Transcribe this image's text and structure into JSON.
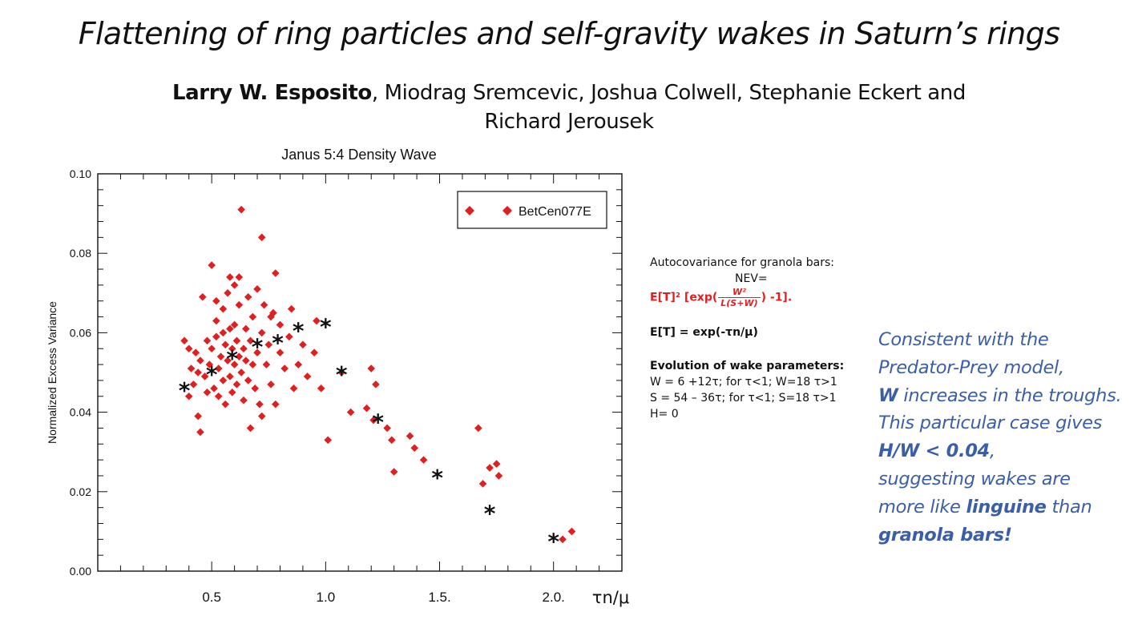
{
  "slide": {
    "title": "Flattening of ring particles and self-gravity wakes in Saturn’s rings",
    "lead_author": "Larry W. Esposito",
    "coauthors_line1": ", Miodrag Sremcevic, Joshua Colwell, Stephanie Eckert and",
    "coauthors_line2": "Richard Jerousek"
  },
  "formulas": {
    "heading": "Autocovariance for granola bars:",
    "nev": "NEV=",
    "nev_lhs": "E[T]² [exp(",
    "nev_num": "W²",
    "nev_den": "L(S+W)",
    "nev_rhs": ") -1].",
    "et": "E[T] = exp(-τn/μ)",
    "evolution_heading": "Evolution of wake parameters:",
    "w_rule": "W = 6 +12τ; for τ<1;  W=18  τ>1",
    "s_rule": "S = 54 – 36τ; for τ<1;  S=18  τ>1",
    "h_rule": "H= 0"
  },
  "conclusion": {
    "line1": "Consistent with the",
    "line2": "Predator-Prey model,",
    "line3_bold": "W",
    "line3_rest": " increases in the troughs.",
    "line4": "This particular case gives",
    "line5_bold": "H/W < 0.04",
    "line5_rest": ",",
    "line6": "suggesting wakes are",
    "line7_pre": "more like ",
    "line7_bold": "linguine",
    "line7_post": " than",
    "line8_bold": "granola bars!"
  },
  "colors": {
    "series_red": "#e02020",
    "model_marker": "#111111",
    "conclusion_blue": "#3a5fa8"
  },
  "chart_data": {
    "type": "scatter",
    "title": "Janus 5:4 Density Wave",
    "xlabel": "τn/μ",
    "ylabel": "Normalized Excess Variance",
    "xlim": [
      0.0,
      2.3
    ],
    "ylim": [
      0.0,
      0.1
    ],
    "x_ticks": [
      "0.5",
      "1.0",
      "1.5.",
      "2.0."
    ],
    "y_ticks": [
      "0.00",
      "0.02",
      "0.04",
      "0.06",
      "0.08",
      "0.10"
    ],
    "legend": {
      "position": "top-right",
      "entries": [
        "BetCen077E"
      ]
    },
    "series": [
      {
        "name": "BetCen077E",
        "marker": "diamond",
        "points": [
          [
            0.38,
            0.058
          ],
          [
            0.4,
            0.056
          ],
          [
            0.41,
            0.051
          ],
          [
            0.42,
            0.047
          ],
          [
            0.4,
            0.044
          ],
          [
            0.44,
            0.039
          ],
          [
            0.45,
            0.035
          ],
          [
            0.43,
            0.055
          ],
          [
            0.44,
            0.05
          ],
          [
            0.45,
            0.053
          ],
          [
            0.46,
            0.069
          ],
          [
            0.47,
            0.049
          ],
          [
            0.48,
            0.058
          ],
          [
            0.48,
            0.045
          ],
          [
            0.49,
            0.052
          ],
          [
            0.5,
            0.056
          ],
          [
            0.51,
            0.046
          ],
          [
            0.52,
            0.059
          ],
          [
            0.52,
            0.068
          ],
          [
            0.53,
            0.051
          ],
          [
            0.53,
            0.044
          ],
          [
            0.54,
            0.054
          ],
          [
            0.55,
            0.06
          ],
          [
            0.55,
            0.048
          ],
          [
            0.56,
            0.057
          ],
          [
            0.56,
            0.042
          ],
          [
            0.57,
            0.053
          ],
          [
            0.57,
            0.07
          ],
          [
            0.58,
            0.049
          ],
          [
            0.58,
            0.061
          ],
          [
            0.59,
            0.056
          ],
          [
            0.59,
            0.045
          ],
          [
            0.6,
            0.052
          ],
          [
            0.6,
            0.072
          ],
          [
            0.61,
            0.058
          ],
          [
            0.61,
            0.047
          ],
          [
            0.62,
            0.054
          ],
          [
            0.62,
            0.067
          ],
          [
            0.63,
            0.05
          ],
          [
            0.64,
            0.056
          ],
          [
            0.64,
            0.043
          ],
          [
            0.65,
            0.061
          ],
          [
            0.65,
            0.053
          ],
          [
            0.66,
            0.048
          ],
          [
            0.67,
            0.058
          ],
          [
            0.67,
            0.036
          ],
          [
            0.68,
            0.052
          ],
          [
            0.68,
            0.064
          ],
          [
            0.69,
            0.046
          ],
          [
            0.7,
            0.055
          ],
          [
            0.71,
            0.042
          ],
          [
            0.72,
            0.06
          ],
          [
            0.72,
            0.039
          ],
          [
            0.73,
            0.067
          ],
          [
            0.74,
            0.052
          ],
          [
            0.75,
            0.057
          ],
          [
            0.76,
            0.047
          ],
          [
            0.77,
            0.065
          ],
          [
            0.78,
            0.042
          ],
          [
            0.8,
            0.062
          ],
          [
            0.8,
            0.055
          ],
          [
            0.82,
            0.051
          ],
          [
            0.84,
            0.059
          ],
          [
            0.86,
            0.046
          ],
          [
            0.88,
            0.052
          ],
          [
            0.9,
            0.057
          ],
          [
            0.92,
            0.049
          ],
          [
            0.95,
            0.055
          ],
          [
            0.96,
            0.063
          ],
          [
            0.98,
            0.046
          ],
          [
            0.5,
            0.077
          ],
          [
            0.52,
            0.063
          ],
          [
            0.55,
            0.066
          ],
          [
            0.58,
            0.074
          ],
          [
            0.6,
            0.062
          ],
          [
            0.63,
            0.091
          ],
          [
            0.66,
            0.069
          ],
          [
            0.7,
            0.071
          ],
          [
            0.72,
            0.084
          ],
          [
            0.76,
            0.064
          ],
          [
            0.78,
            0.075
          ],
          [
            0.85,
            0.066
          ],
          [
            0.62,
            0.074
          ],
          [
            1.01,
            0.033
          ],
          [
            1.07,
            0.05
          ],
          [
            1.11,
            0.04
          ],
          [
            1.18,
            0.041
          ],
          [
            1.2,
            0.051
          ],
          [
            1.22,
            0.047
          ],
          [
            1.21,
            0.038
          ],
          [
            1.27,
            0.036
          ],
          [
            1.29,
            0.033
          ],
          [
            1.3,
            0.025
          ],
          [
            1.37,
            0.034
          ],
          [
            1.39,
            0.031
          ],
          [
            1.43,
            0.028
          ],
          [
            1.67,
            0.036
          ],
          [
            1.69,
            0.022
          ],
          [
            1.75,
            0.027
          ],
          [
            1.76,
            0.024
          ],
          [
            1.72,
            0.026
          ],
          [
            2.04,
            0.008
          ],
          [
            2.08,
            0.01
          ]
        ]
      },
      {
        "name": "",
        "marker": "asterisk",
        "points": [
          [
            0.38,
            0.046
          ],
          [
            0.5,
            0.05
          ],
          [
            0.59,
            0.054
          ],
          [
            0.7,
            0.057
          ],
          [
            0.79,
            0.058
          ],
          [
            0.88,
            0.061
          ],
          [
            1.0,
            0.062
          ],
          [
            1.07,
            0.05
          ],
          [
            1.23,
            0.038
          ],
          [
            1.49,
            0.024
          ],
          [
            1.72,
            0.015
          ],
          [
            2.0,
            0.008
          ]
        ]
      }
    ]
  }
}
